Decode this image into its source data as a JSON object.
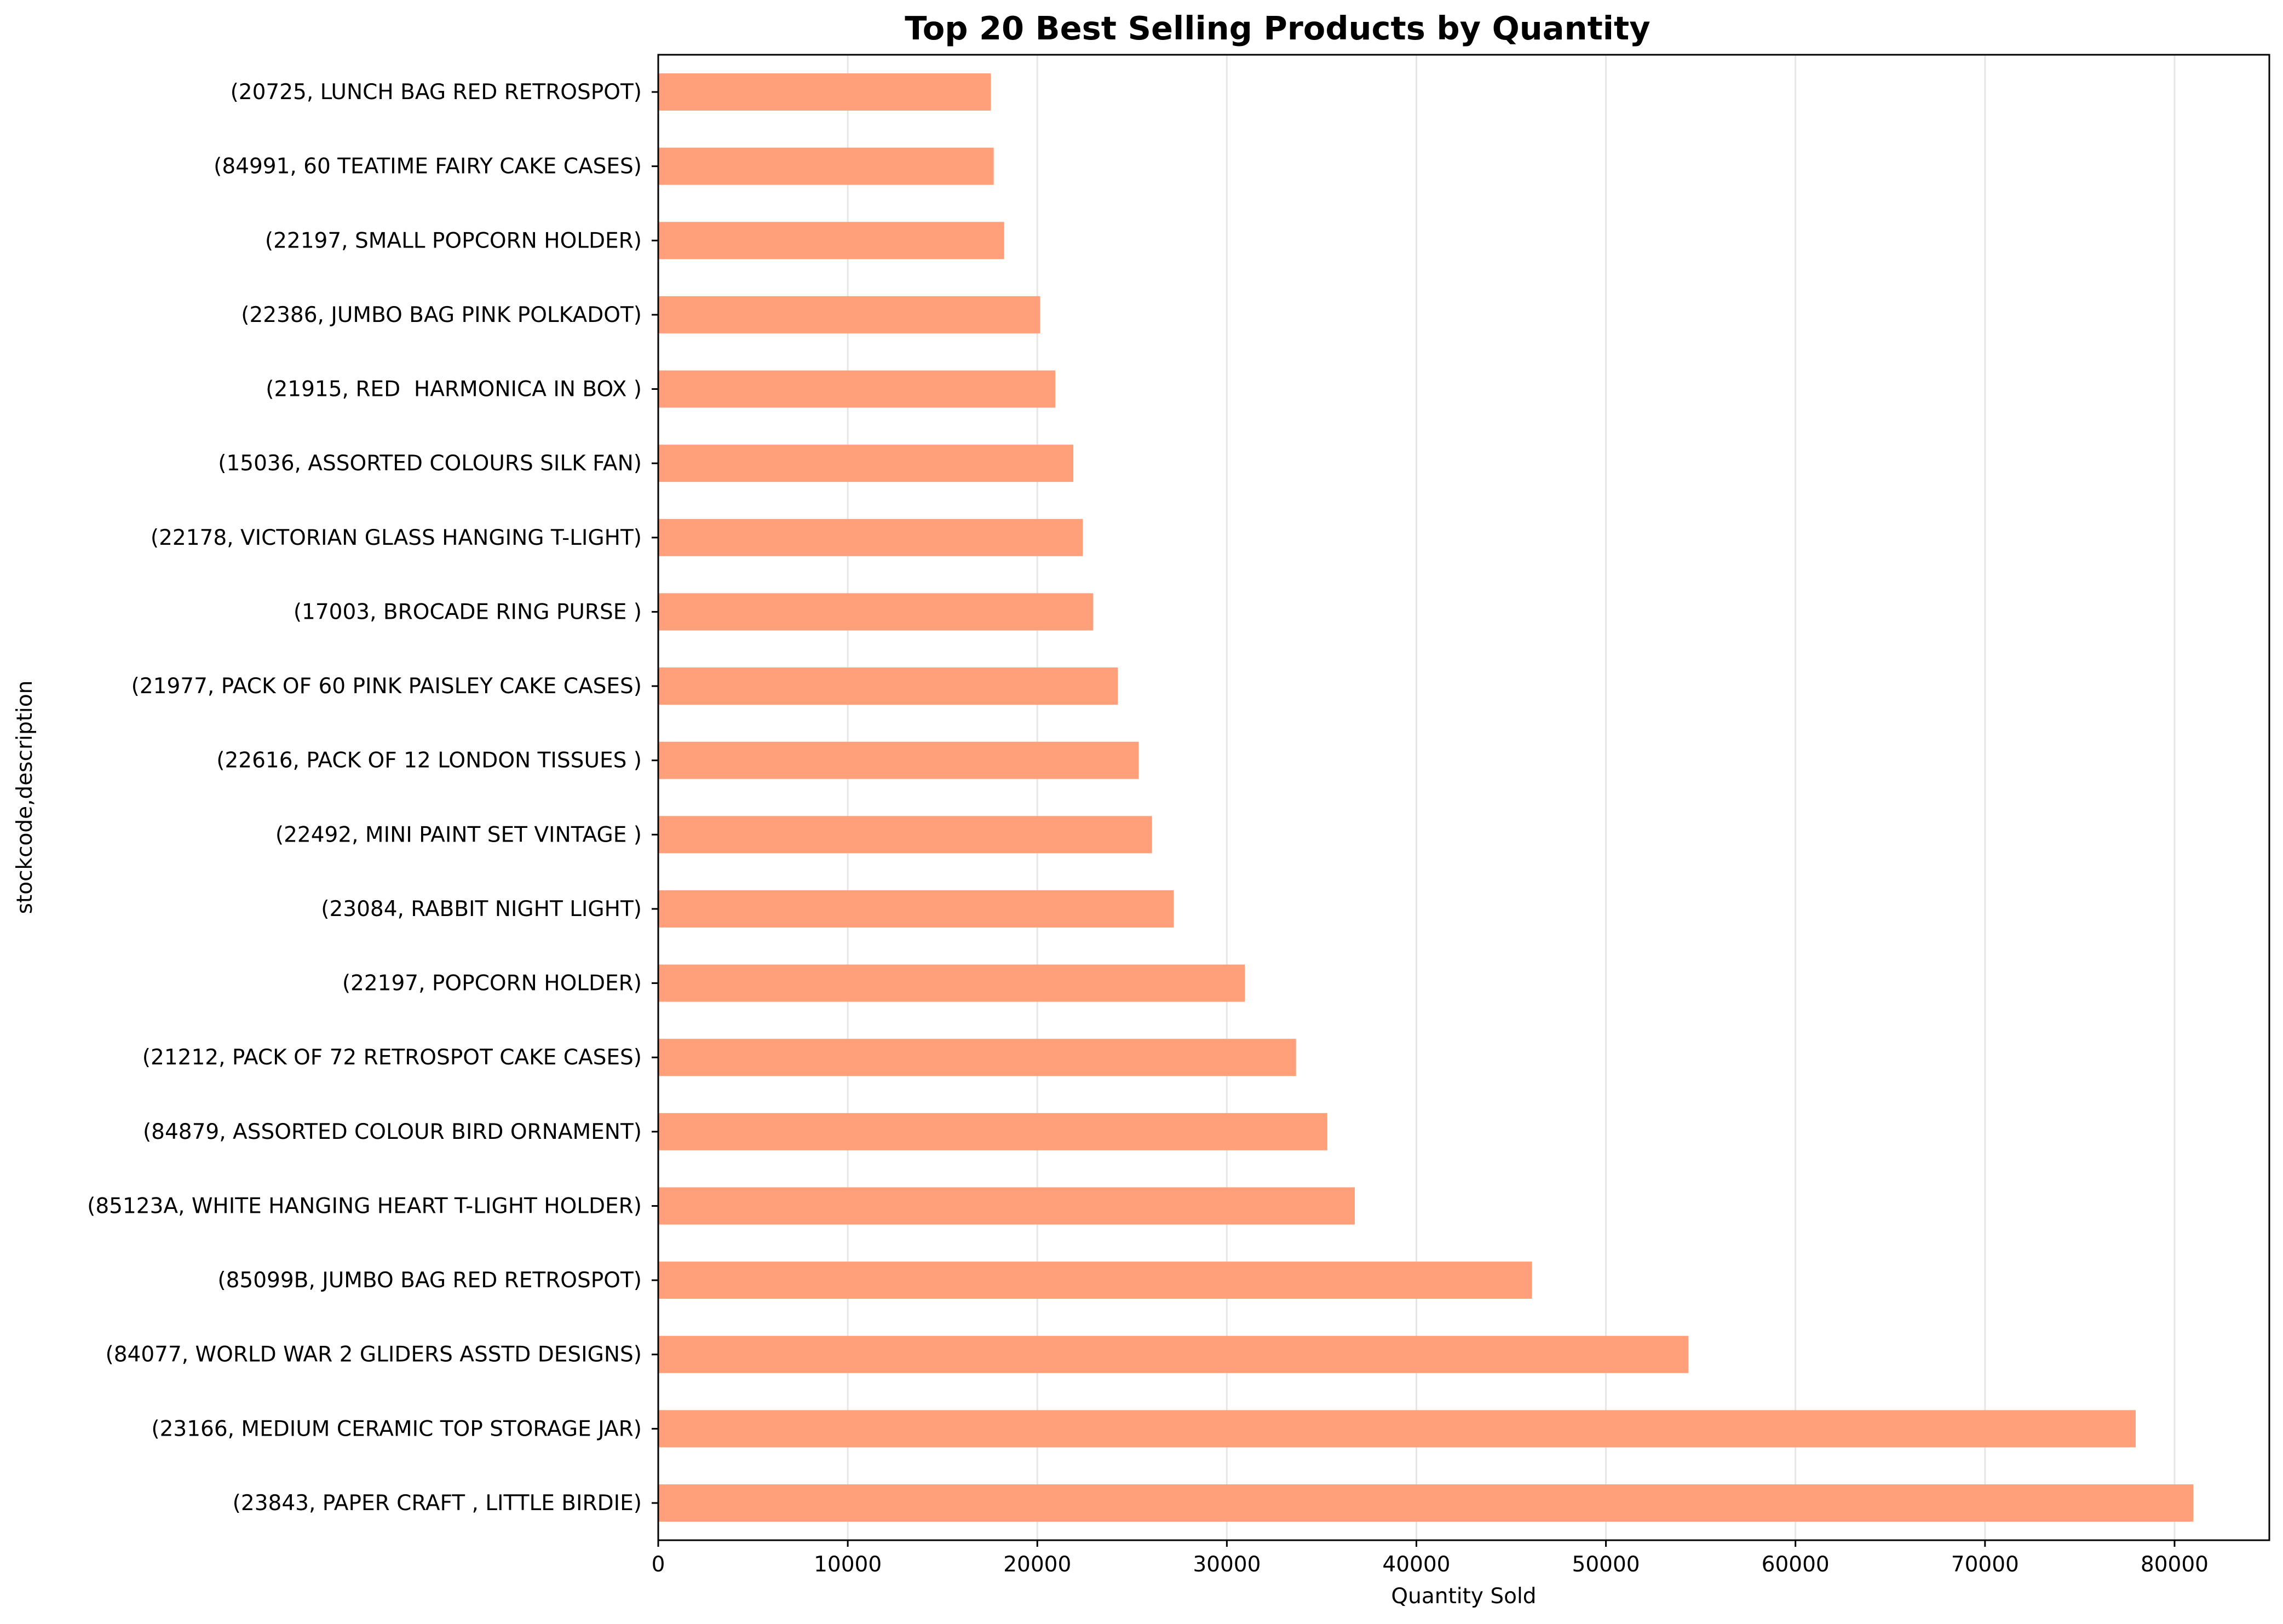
{
  "chart_data": {
    "type": "bar",
    "orientation": "horizontal",
    "title": "Top 20 Best Selling Products by Quantity",
    "xlabel": "Quantity Sold",
    "ylabel": "stockcode,description",
    "xlim": [
      0,
      85000
    ],
    "xticks": [
      0,
      10000,
      20000,
      30000,
      40000,
      50000,
      60000,
      70000,
      80000
    ],
    "grid": "x-axis only",
    "bar_color": "#ffa07a",
    "categories": [
      "(20725, LUNCH BAG RED RETROSPOT)",
      "(84991, 60 TEATIME FAIRY CAKE CASES)",
      "(22197, SMALL POPCORN HOLDER)",
      "(22386, JUMBO BAG PINK POLKADOT)",
      "(21915, RED  HARMONICA IN BOX )",
      "(15036, ASSORTED COLOURS SILK FAN)",
      "(22178, VICTORIAN GLASS HANGING T-LIGHT)",
      "(17003, BROCADE RING PURSE )",
      "(21977, PACK OF 60 PINK PAISLEY CAKE CASES)",
      "(22616, PACK OF 12 LONDON TISSUES )",
      "(22492, MINI PAINT SET VINTAGE )",
      "(23084, RABBIT NIGHT LIGHT)",
      "(22197, POPCORN HOLDER)",
      "(21212, PACK OF 72 RETROSPOT CAKE CASES)",
      "(84879, ASSORTED COLOUR BIRD ORNAMENT)",
      "(85123A, WHITE HANGING HEART T-LIGHT HOLDER)",
      "(85099B, JUMBO BAG RED RETROSPOT)",
      "(84077, WORLD WAR 2 GLIDERS ASSTD DESIGNS)",
      "(23166, MEDIUM CERAMIC TOP STORAGE JAR)",
      "(23843, PAPER CRAFT , LITTLE BIRDIE)"
    ],
    "values": [
      17550,
      17700,
      18250,
      20150,
      20950,
      21900,
      22400,
      22950,
      24250,
      25350,
      26050,
      27200,
      30950,
      33650,
      35300,
      36750,
      46100,
      54350,
      77950,
      80995
    ]
  }
}
